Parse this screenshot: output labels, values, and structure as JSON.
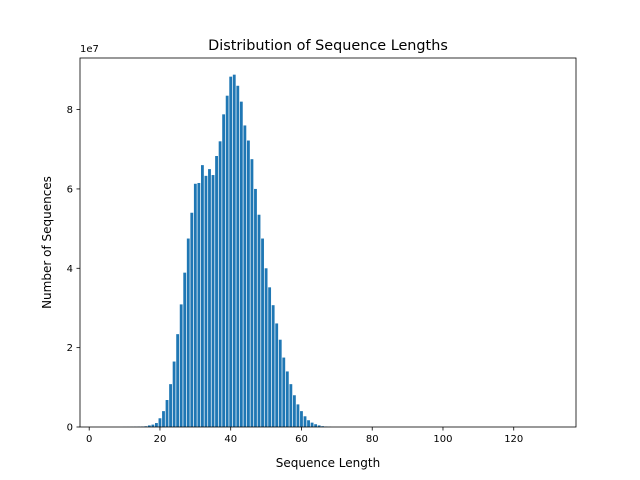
{
  "chart_data": {
    "type": "bar",
    "title": "Distribution of Sequence Lengths",
    "xlabel": "Sequence Length",
    "ylabel": "Number of Sequences",
    "y_multiplier_label": "1e7",
    "xlim": [
      -2.6,
      137.6
    ],
    "ylim": [
      0,
      93000000
    ],
    "x_ticks": [
      0,
      20,
      40,
      60,
      80,
      100,
      120
    ],
    "x_tick_labels": [
      "0",
      "20",
      "40",
      "60",
      "80",
      "100",
      "120"
    ],
    "y_ticks": [
      0,
      20000000,
      40000000,
      60000000,
      80000000
    ],
    "y_tick_labels": [
      "0",
      "2",
      "4",
      "6",
      "8"
    ],
    "bar_color": "#1f77b4",
    "bar_width": 0.8,
    "grid": false,
    "legend": false,
    "x": [
      10,
      11,
      12,
      13,
      14,
      15,
      16,
      17,
      18,
      19,
      20,
      21,
      22,
      23,
      24,
      25,
      26,
      27,
      28,
      29,
      30,
      31,
      32,
      33,
      34,
      35,
      36,
      37,
      38,
      39,
      40,
      41,
      42,
      43,
      44,
      45,
      46,
      47,
      48,
      49,
      50,
      51,
      52,
      53,
      54,
      55,
      56,
      57,
      58,
      59,
      60,
      61,
      62,
      63,
      64,
      65,
      66,
      67,
      68
    ],
    "values": [
      20000,
      30000,
      40000,
      60000,
      80000,
      120000,
      180000,
      400000,
      600000,
      1000000,
      2200000,
      4000000,
      6800000,
      10800000,
      16500000,
      23400000,
      30900000,
      38900000,
      47500000,
      54000000,
      61300000,
      61500000,
      66000000,
      63300000,
      65000000,
      63500000,
      68300000,
      72000000,
      78800000,
      83500000,
      88300000,
      88800000,
      86000000,
      82000000,
      76000000,
      72200000,
      67500000,
      60000000,
      53500000,
      47500000,
      40000000,
      35200000,
      30700000,
      26100000,
      22000000,
      17500000,
      14000000,
      10800000,
      8000000,
      5700000,
      4000000,
      2700000,
      1700000,
      1100000,
      700000,
      400000,
      200000,
      100000,
      50000
    ]
  }
}
